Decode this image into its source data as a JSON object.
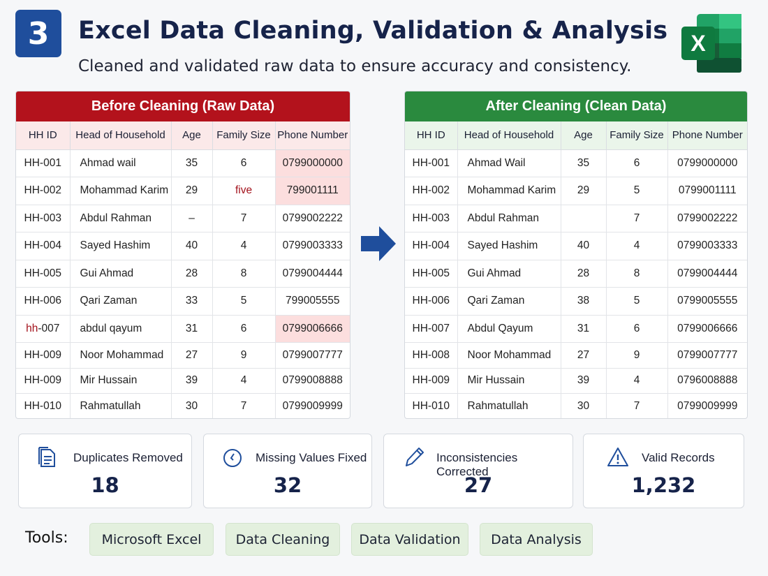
{
  "header": {
    "badge": "3",
    "title": "Excel Data Cleaning, Validation & Analysis",
    "subtitle": "Cleaned and validated raw data to ensure accuracy and consistency.",
    "logo_letter": "X"
  },
  "before": {
    "title": "Before Cleaning (Raw Data)",
    "columns": [
      "HH ID",
      "Head of Household",
      "Age",
      "Family Size",
      "Phone Number"
    ],
    "rows": [
      [
        "HH-001",
        "Ahmad wail",
        "35",
        "6",
        "0799000000"
      ],
      [
        "HH-002",
        "Mohammad Karim",
        "29",
        "five",
        "799001111"
      ],
      [
        "HH-003",
        "Abdul Rahman",
        "–",
        "7",
        "0799002222"
      ],
      [
        "HH-004",
        "Sayed Hashim",
        "40",
        "4",
        "0799003333"
      ],
      [
        "HH-005",
        "Gui Ahmad",
        "28",
        "8",
        "0799004444"
      ],
      [
        "HH-006",
        "Qari Zaman",
        "33",
        "5",
        "799005555"
      ],
      [
        "HH-007",
        "abdul qayum",
        "31",
        "6",
        "0799006666"
      ],
      [
        "HH-009",
        "Noor Mohammad",
        "27",
        "9",
        "0799007777"
      ],
      [
        "HH-009",
        "Mir Hussain",
        "39",
        "4",
        "0799008888"
      ],
      [
        "HH-010",
        "Rahmatullah",
        "30",
        "7",
        "0799009999"
      ]
    ],
    "id7_prefix": "hh",
    "id7_suffix": "-007"
  },
  "after": {
    "title": "After Cleaning (Clean Data)",
    "columns": [
      "HH ID",
      "Head of Household",
      "Age",
      "Family Size",
      "Phone Number"
    ],
    "rows": [
      [
        "HH-001",
        "Ahmad Wail",
        "35",
        "6",
        "0799000000"
      ],
      [
        "HH-002",
        "Mohammad Karim",
        "29",
        "5",
        "0799001111"
      ],
      [
        "HH-003",
        "Abdul Rahman",
        "",
        "7",
        "0799002222"
      ],
      [
        "HH-004",
        "Sayed Hashim",
        "40",
        "4",
        "0799003333"
      ],
      [
        "HH-005",
        "Gui Ahmad",
        "28",
        "8",
        "0799004444"
      ],
      [
        "HH-006",
        "Qari Zaman",
        "38",
        "5",
        "0799005555"
      ],
      [
        "HH-007",
        "Abdul Qayum",
        "31",
        "6",
        "0799006666"
      ],
      [
        "HH-008",
        "Noor Mohammad",
        "27",
        "9",
        "0799007777"
      ],
      [
        "HH-009",
        "Mir Hussain",
        "39",
        "4",
        "0796008888"
      ],
      [
        "HH-010",
        "Rahmatullah",
        "30",
        "7",
        "0799009999"
      ]
    ]
  },
  "stats": [
    {
      "label": "Duplicates Removed",
      "value": "18",
      "icon": "document-icon"
    },
    {
      "label": "Missing Values Fixed",
      "value": "32",
      "icon": "clock-icon"
    },
    {
      "label": "Inconsistencies Corrected",
      "value": "27",
      "icon": "pencil-icon"
    },
    {
      "label": "Valid Records",
      "value": "1,232",
      "icon": "warning-icon"
    }
  ],
  "tools": {
    "label": "Tools:",
    "items": [
      "Microsoft Excel",
      "Data Cleaning",
      "Data Validation",
      "Data Analysis"
    ]
  },
  "colors": {
    "badge": "#1f4e9c",
    "before_header": "#b3121c",
    "after_header": "#2a8a3e",
    "flag": "#fcdede",
    "pill": "#e3f0de"
  }
}
